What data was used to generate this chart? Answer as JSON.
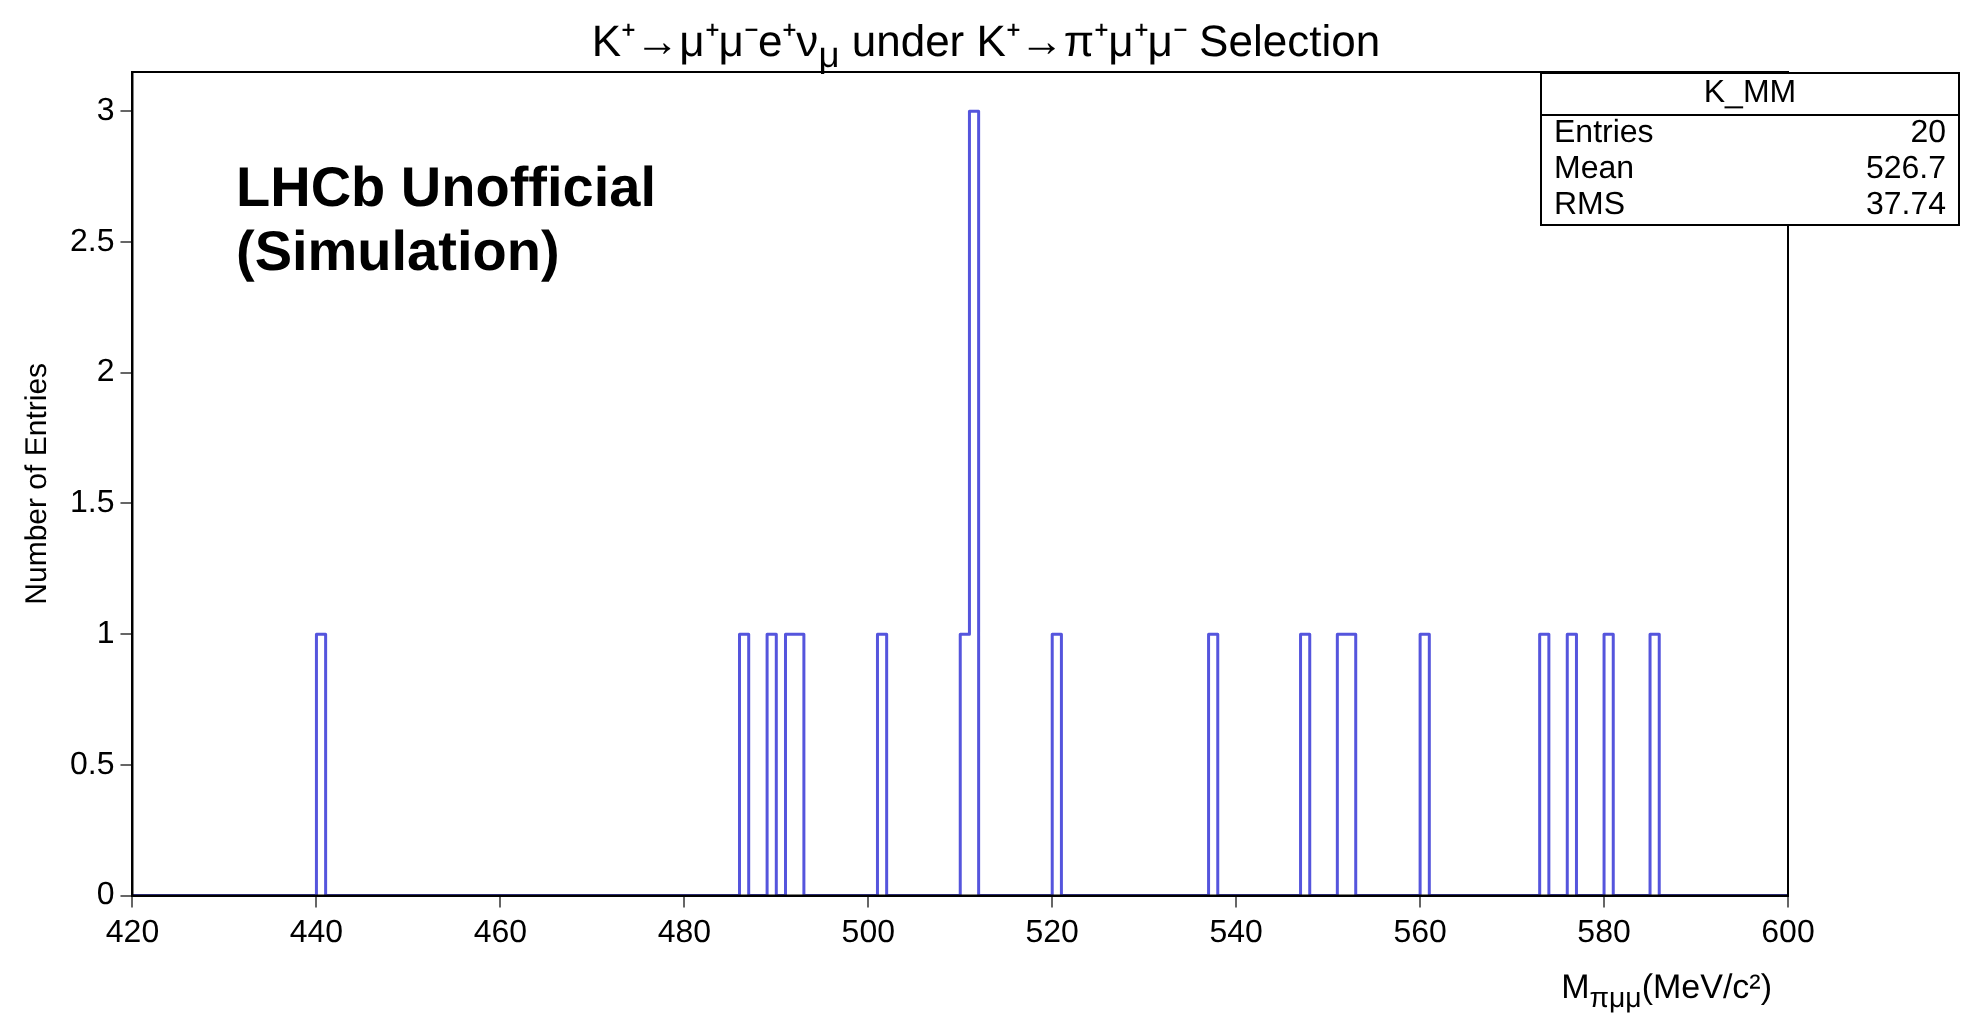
{
  "chart_data": {
    "type": "histogram",
    "title": "K⁺→μ⁺μ⁻e⁺ν$_{μ}$ under K⁺→π⁺μ⁺μ⁻ Selection",
    "xlabel": "M$_{πμμ}$(MeV/c²)",
    "ylabel": "Number of Entries",
    "annotations": [
      "LHCb Unofficial\n(Simulation)",
      "K_MM",
      "Entries",
      "20",
      "Mean",
      "526.7",
      "RMS",
      "37.74"
    ],
    "bins": [
      420,
      440,
      441,
      486,
      487,
      489,
      490,
      491,
      492,
      493,
      501,
      502,
      510,
      511,
      512,
      520,
      521,
      537,
      538,
      547,
      548,
      551,
      552,
      553,
      560,
      561,
      573,
      574,
      576,
      577,
      580,
      581,
      585,
      586,
      600
    ],
    "values": [
      0,
      1,
      0,
      1,
      0,
      1,
      0,
      1,
      1,
      0,
      1,
      0,
      1,
      3,
      0,
      1,
      0,
      1,
      0,
      1,
      0,
      1,
      1,
      0,
      1,
      0,
      1,
      0,
      1,
      0,
      1,
      0,
      1,
      0
    ],
    "color": "#5555dd",
    "xlim": [
      420,
      600
    ],
    "xticks": [
      420,
      440,
      460,
      480,
      500,
      520,
      540,
      560,
      580,
      600
    ],
    "ylim": [
      0,
      3.15
    ],
    "yticks": [
      0,
      0.5,
      1,
      1.5,
      2,
      2.5,
      3
    ],
    "grid": false,
    "legend": false
  }
}
